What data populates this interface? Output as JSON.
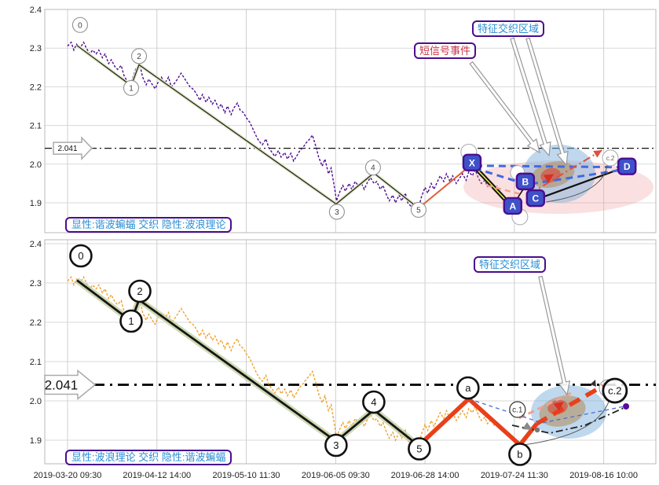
{
  "panels": [
    {
      "id": "explicit-harmonic",
      "legend": "显性:谐波蝙蝠 交织 隐性:波浪理论",
      "price_color": "#4c0b8f",
      "callout_feature_zone": "特征交织区域",
      "callout_short_signal": "短信号事件",
      "threshold_label": "2.041"
    },
    {
      "id": "explicit-wave",
      "legend": "显性:波浪理论 交织 隐性:谐波蝙蝠",
      "price_color": "#f0a12c",
      "callout_feature_zone": "特征交织区域",
      "threshold_label": "2.041"
    }
  ],
  "chart_data": {
    "type": "line",
    "x_tick_labels": [
      "2019-03-20 09:30",
      "2019-04-12 14:00",
      "2019-05-10 11:30",
      "2019-06-05 09:30",
      "2019-06-28 14:00",
      "2019-07-24 11:30",
      "2019-08-16 10:00"
    ],
    "y_ticks": [
      "2.4",
      "2.3",
      "2.2",
      "2.1",
      "2.0",
      "1.9"
    ],
    "y_tick_values": [
      2.4,
      2.3,
      2.2,
      2.1,
      2.0,
      1.9
    ],
    "ylim_top_panel": [
      1.823,
      2.4
    ],
    "ylim_bottom_panel": [
      1.84,
      2.4
    ],
    "threshold_value": 2.041,
    "grid": true,
    "x_unit": "grid-interval index (0 = 2019-03-20 09:30)",
    "price": [
      [
        0.0,
        2.305
      ],
      [
        0.04,
        2.315
      ],
      [
        0.07,
        2.295
      ],
      [
        0.1,
        2.31
      ],
      [
        0.14,
        2.3
      ],
      [
        0.18,
        2.315
      ],
      [
        0.21,
        2.3
      ],
      [
        0.25,
        2.285
      ],
      [
        0.28,
        2.295
      ],
      [
        0.32,
        2.285
      ],
      [
        0.35,
        2.295
      ],
      [
        0.39,
        2.275
      ],
      [
        0.42,
        2.285
      ],
      [
        0.46,
        2.26
      ],
      [
        0.49,
        2.27
      ],
      [
        0.53,
        2.252
      ],
      [
        0.56,
        2.245
      ],
      [
        0.6,
        2.255
      ],
      [
        0.63,
        2.23
      ],
      [
        0.67,
        2.213
      ],
      [
        0.7,
        2.205
      ],
      [
        0.74,
        2.23
      ],
      [
        0.77,
        2.25
      ],
      [
        0.81,
        2.255
      ],
      [
        0.84,
        2.225
      ],
      [
        0.88,
        2.205
      ],
      [
        0.91,
        2.22
      ],
      [
        0.95,
        2.205
      ],
      [
        0.98,
        2.195
      ],
      [
        1.02,
        2.215
      ],
      [
        1.05,
        2.225
      ],
      [
        1.09,
        2.21
      ],
      [
        1.13,
        2.225
      ],
      [
        1.16,
        2.2
      ],
      [
        1.2,
        2.21
      ],
      [
        1.23,
        2.22
      ],
      [
        1.27,
        2.235
      ],
      [
        1.3,
        2.225
      ],
      [
        1.34,
        2.21
      ],
      [
        1.37,
        2.2
      ],
      [
        1.41,
        2.193
      ],
      [
        1.44,
        2.183
      ],
      [
        1.48,
        2.165
      ],
      [
        1.51,
        2.18
      ],
      [
        1.55,
        2.16
      ],
      [
        1.58,
        2.173
      ],
      [
        1.62,
        2.155
      ],
      [
        1.65,
        2.165
      ],
      [
        1.69,
        2.145
      ],
      [
        1.72,
        2.155
      ],
      [
        1.76,
        2.133
      ],
      [
        1.79,
        2.15
      ],
      [
        1.83,
        2.128
      ],
      [
        1.86,
        2.145
      ],
      [
        1.9,
        2.158
      ],
      [
        1.93,
        2.14
      ],
      [
        1.97,
        2.133
      ],
      [
        2.0,
        2.12
      ],
      [
        2.04,
        2.108
      ],
      [
        2.07,
        2.093
      ],
      [
        2.11,
        2.073
      ],
      [
        2.14,
        2.06
      ],
      [
        2.18,
        2.05
      ],
      [
        2.22,
        2.065
      ],
      [
        2.25,
        2.043
      ],
      [
        2.28,
        2.033
      ],
      [
        2.32,
        2.02
      ],
      [
        2.36,
        2.035
      ],
      [
        2.39,
        2.018
      ],
      [
        2.43,
        2.03
      ],
      [
        2.46,
        2.013
      ],
      [
        2.5,
        2.028
      ],
      [
        2.53,
        2.008
      ],
      [
        2.57,
        2.023
      ],
      [
        2.6,
        2.035
      ],
      [
        2.64,
        2.045
      ],
      [
        2.67,
        2.055
      ],
      [
        2.71,
        2.065
      ],
      [
        2.74,
        2.075
      ],
      [
        2.78,
        2.045
      ],
      [
        2.81,
        2.018
      ],
      [
        2.85,
        1.995
      ],
      [
        2.88,
        2.013
      ],
      [
        2.92,
        1.975
      ],
      [
        2.95,
        1.99
      ],
      [
        2.99,
        1.935
      ],
      [
        3.01,
        1.905
      ],
      [
        3.04,
        1.925
      ],
      [
        3.08,
        1.945
      ],
      [
        3.11,
        1.93
      ],
      [
        3.15,
        1.95
      ],
      [
        3.18,
        1.935
      ],
      [
        3.22,
        1.955
      ],
      [
        3.25,
        1.945
      ],
      [
        3.29,
        1.95
      ],
      [
        3.32,
        1.935
      ],
      [
        3.36,
        1.955
      ],
      [
        3.39,
        1.965
      ],
      [
        3.43,
        1.95
      ],
      [
        3.46,
        1.955
      ],
      [
        3.5,
        1.935
      ],
      [
        3.53,
        1.945
      ],
      [
        3.57,
        1.92
      ],
      [
        3.6,
        1.905
      ],
      [
        3.64,
        1.92
      ],
      [
        3.67,
        1.9
      ],
      [
        3.71,
        1.92
      ],
      [
        3.74,
        1.905
      ],
      [
        3.78,
        1.925
      ],
      [
        3.81,
        1.898
      ],
      [
        3.85,
        1.89
      ],
      [
        3.88,
        1.9
      ],
      [
        3.93,
        1.888
      ],
      [
        3.96,
        1.915
      ],
      [
        4.0,
        1.94
      ],
      [
        4.03,
        1.925
      ],
      [
        4.07,
        1.95
      ],
      [
        4.1,
        1.935
      ],
      [
        4.14,
        1.955
      ],
      [
        4.17,
        1.97
      ],
      [
        4.21,
        1.955
      ],
      [
        4.24,
        1.975
      ],
      [
        4.28,
        1.955
      ],
      [
        4.31,
        1.97
      ],
      [
        4.35,
        1.95
      ],
      [
        4.39,
        1.965
      ],
      [
        4.42,
        1.975
      ],
      [
        4.46,
        1.958
      ],
      [
        4.49,
        1.98
      ],
      [
        4.53,
        1.97
      ],
      [
        4.56,
        1.985
      ],
      [
        4.6,
        1.963
      ],
      [
        4.63,
        1.95
      ],
      [
        4.67,
        1.958
      ],
      [
        4.7,
        1.942
      ],
      [
        4.74,
        1.952
      ],
      [
        4.77,
        1.938
      ],
      [
        4.81,
        1.944
      ]
    ],
    "wave": {
      "labels": [
        "0",
        "1",
        "2",
        "3",
        "4",
        "5"
      ],
      "points": [
        [
          0.105,
          2.307
        ],
        [
          0.712,
          2.203
        ],
        [
          0.8,
          2.257
        ],
        [
          3.005,
          1.897
        ],
        [
          3.427,
          1.977
        ],
        [
          3.928,
          1.886
        ]
      ]
    },
    "harmonic": {
      "labels": [
        "X",
        "A",
        "B",
        "C",
        "D"
      ],
      "points": [
        [
          4.526,
          2.0
        ],
        [
          4.973,
          1.89
        ],
        [
          5.132,
          1.947
        ],
        [
          5.237,
          1.908
        ],
        [
          6.19,
          1.988
        ]
      ]
    },
    "abc_waves": {
      "a": [
        4.49,
        2.005
      ],
      "b": [
        5.062,
        1.888
      ],
      "c1": [
        5.035,
        1.978
      ],
      "c2": [
        6.125,
        2.026
      ],
      "c2_line_end": [
        5.993,
        2.038
      ],
      "hidden_c2_top_panel": [
        6.074,
        2.016
      ],
      "end_dot": [
        6.25,
        1.986
      ]
    },
    "abc_labels": {
      "a": "a",
      "b": "b",
      "c1": "c.1",
      "c2": "c.2"
    },
    "aux_lines": {
      "blue_dashed_bottom": [
        [
          4.49,
          2.005
        ],
        [
          5.309,
          1.944
        ],
        [
          6.232,
          1.986
        ]
      ],
      "black_dashdot_bottom": [
        [
          4.975,
          1.938
        ],
        [
          5.397,
          1.918
        ],
        [
          5.792,
          1.938
        ],
        [
          6.224,
          1.982
        ]
      ],
      "salmon_dashed_bottom": [
        [
          5.053,
          1.956
        ],
        [
          5.633,
          2.02
        ]
      ],
      "salmon_dashed_top": [
        [
          4.69,
          1.945
        ],
        [
          5.08,
          1.922
        ]
      ],
      "red_dashdot_top": [
        [
          5.17,
          1.923
        ],
        [
          5.98,
          2.036
        ]
      ],
      "red_marker_top": [
        5.39,
        1.966
      ],
      "red_marker_bottom": [
        5.5,
        1.99
      ]
    },
    "colors": {
      "price_top": "#4c0b8f",
      "price_bottom": "#f0a12c",
      "wave_line": "#1d1d12",
      "wave_glow": "#c9d6a8",
      "impulse_red": "#e8401a",
      "pattern_blue_dash": "#4169e1",
      "pattern_box_fill": "#3f51c9",
      "pattern_box_border": "#4a0d8f",
      "threshold": "#111111",
      "pink_zone": "#e99",
      "blue_zone": "#7fb2dd",
      "tan_zone": "#b08a55",
      "red_zone": "#d84332",
      "end_dot": "#5a0b9a",
      "grid": "#d9d9d9"
    }
  }
}
